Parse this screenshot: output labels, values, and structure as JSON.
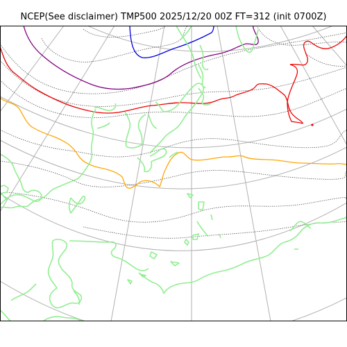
{
  "title": "NCEP(See disclaimer) TMP500 2025/12/20 00Z FT=312 (init 0700Z)",
  "colors": {
    "graticule": "#b0b0b0",
    "coastline": "#90ee90",
    "isotherm_dotted": "#555555",
    "contour_blue": "#0000dd",
    "contour_purple": "#800080",
    "contour_red": "#ee0000",
    "contour_orange": "#ffa500",
    "frame": "#000000"
  }
}
